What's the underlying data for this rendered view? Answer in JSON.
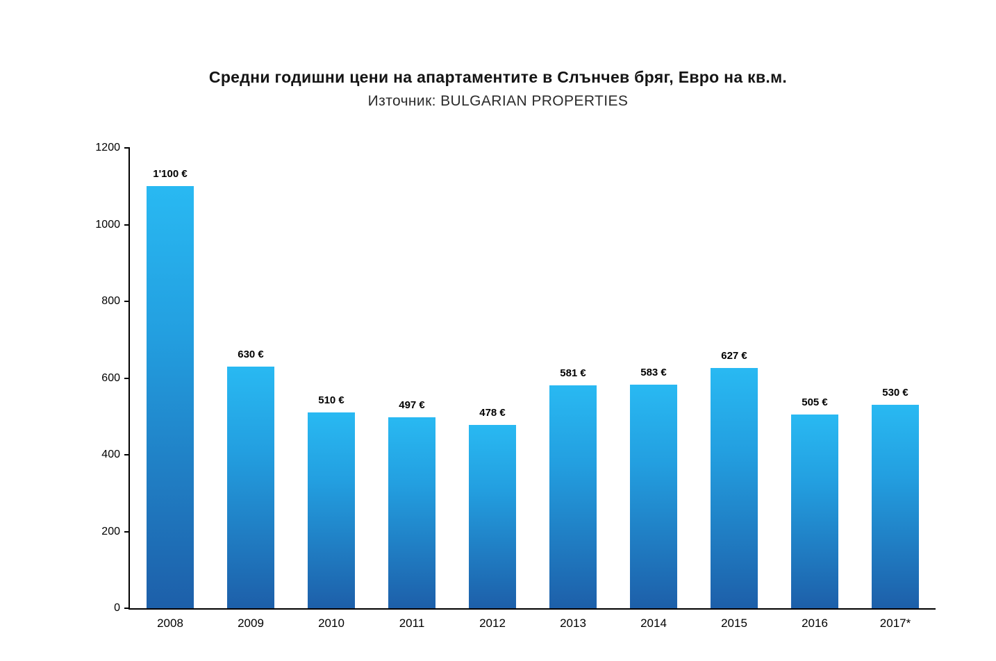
{
  "title": "Средни годишни цени на апартаментите в Слънчев бряг, Евро на кв.м.",
  "subtitle": "Източник: BULGARIAN PROPERTIES",
  "chart_data": {
    "type": "bar",
    "title": "Средни годишни цени на апартаментите в Слънчев бряг, Евро на кв.м.",
    "subtitle": "Източник: BULGARIAN PROPERTIES",
    "categories": [
      "2008",
      "2009",
      "2010",
      "2011",
      "2012",
      "2013",
      "2014",
      "2015",
      "2016",
      "2017*"
    ],
    "values": [
      1100,
      630,
      510,
      497,
      478,
      581,
      583,
      627,
      505,
      530
    ],
    "value_labels": [
      "1'100 €",
      "630 €",
      "510 €",
      "497 €",
      "478 €",
      "581 €",
      "583 €",
      "627 €",
      "505 €",
      "530 €"
    ],
    "xlabel": "",
    "ylabel": "",
    "ylim": [
      0,
      1200
    ],
    "yticks": [
      0,
      200,
      400,
      600,
      800,
      1000,
      1200
    ],
    "grid": false,
    "legend": false,
    "bar_color_top": "#29b9f2",
    "bar_color_bottom": "#1d5fa9",
    "axis_color": "#000000",
    "background_color": "#ffffff"
  }
}
